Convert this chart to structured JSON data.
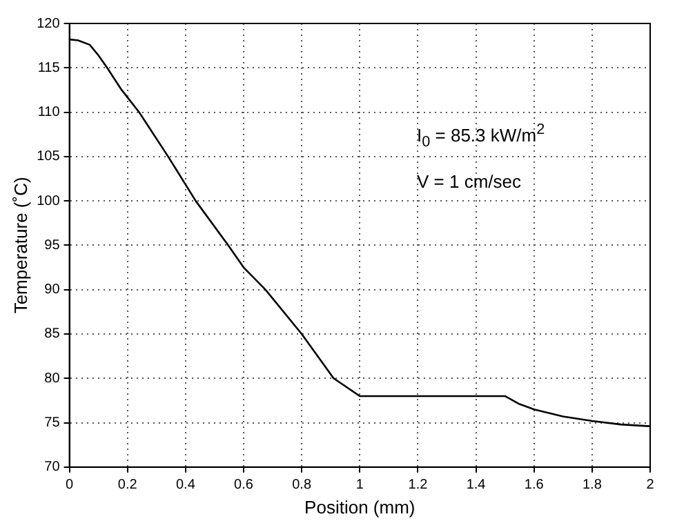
{
  "chart_data": {
    "type": "line",
    "xlabel": "Position (mm)",
    "ylabel": "Temperature (˚C)",
    "annotations": [
      "I$_{0}$ = 85.3 kW/m$^{2}$",
      "V = 1 cm/sec"
    ],
    "series": [
      {
        "color": "#000000",
        "x": [
          0,
          0.03,
          0.07,
          0.1,
          0.13,
          0.18,
          0.24,
          0.34,
          0.435,
          0.547,
          0.6,
          0.675,
          0.8,
          0.91,
          1,
          1.2,
          1.5,
          1.55,
          1.6,
          1.7,
          1.8,
          1.9,
          2
        ],
        "values": [
          118.2,
          118.1,
          117.6,
          116.4,
          115,
          112.5,
          110,
          105,
          100,
          95,
          92.5,
          90,
          85,
          80,
          78,
          78,
          78,
          77.1,
          76.5,
          75.7,
          75.2,
          74.8,
          74.6
        ]
      }
    ],
    "xlim": [
      0,
      2
    ],
    "xticks": [
      0,
      0.2,
      0.4,
      0.6,
      0.8,
      1,
      1.2,
      1.4,
      1.6,
      1.8,
      2
    ],
    "ylim": [
      70,
      120
    ],
    "yticks": [
      70,
      75,
      80,
      85,
      90,
      95,
      100,
      105,
      110,
      115,
      120
    ],
    "grid": true,
    "legend": false,
    "marker": "none",
    "line_style": "solid"
  }
}
